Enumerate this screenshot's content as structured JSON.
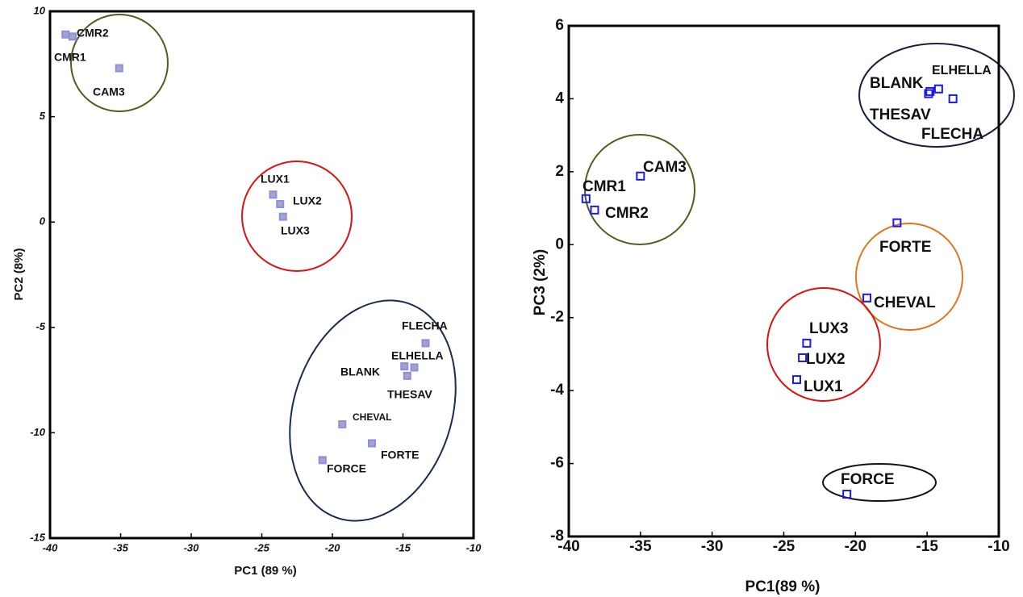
{
  "chart_data": [
    {
      "type": "scatter",
      "xlabel": "PC1 (89 %)",
      "ylabel": "PC2 (8%)",
      "labels": [
        "CMR1",
        "CMR2",
        "CAM3",
        "LUX1",
        "LUX2",
        "LUX3",
        "FLECHA",
        "ELHELLA",
        "BLANK",
        "THESAV",
        "CHEVAL",
        "FORTE",
        "FORCE"
      ],
      "x": [
        -38.9,
        -38.4,
        -35.1,
        -24.2,
        -23.7,
        -23.5,
        -13.4,
        -14.2,
        -14.9,
        -14.7,
        -19.3,
        -17.2,
        -20.7
      ],
      "values": [
        8.9,
        8.8,
        7.3,
        1.3,
        0.85,
        0.25,
        -5.75,
        -6.9,
        -6.85,
        -7.3,
        -9.6,
        -10.5,
        -11.3
      ],
      "color": "#8c8cf0",
      "marker_fill": "#a6a6b8",
      "xlim": [
        -40,
        -10
      ],
      "ylim": [
        -15,
        10
      ],
      "xticks": [
        -40,
        -35,
        -30,
        -25,
        -20,
        -15,
        -10
      ],
      "yticks": [
        -15,
        -10,
        -5,
        0,
        5,
        10
      ]
    },
    {
      "type": "scatter",
      "xlabel": "PC1(89 %)",
      "ylabel": "PC3 (2%)",
      "labels": [
        "CMR1",
        "CMR2",
        "CAM3",
        "LUX1",
        "LUX2",
        "LUX3",
        "FLECHA",
        "ELHELLA",
        "BLANK",
        "THESAV",
        "CHEVAL",
        "FORTE",
        "FORCE"
      ],
      "x": [
        -38.8,
        -38.2,
        -35.0,
        -24.1,
        -23.7,
        -23.4,
        -13.2,
        -14.2,
        -14.9,
        -14.8,
        -19.2,
        -17.1,
        -20.6
      ],
      "values": [
        1.26,
        0.95,
        1.88,
        -3.7,
        -3.1,
        -2.7,
        4.0,
        4.27,
        4.14,
        4.2,
        -1.46,
        0.6,
        -6.84
      ],
      "color": "#1a1aee",
      "marker_fill": "none",
      "xlim": [
        -40,
        -10
      ],
      "ylim": [
        -8,
        6
      ],
      "xticks": [
        -40,
        -35,
        -30,
        -25,
        -20,
        -15,
        -10
      ],
      "yticks": [
        -8,
        -6,
        -4,
        -2,
        0,
        2,
        4,
        6
      ]
    }
  ]
}
